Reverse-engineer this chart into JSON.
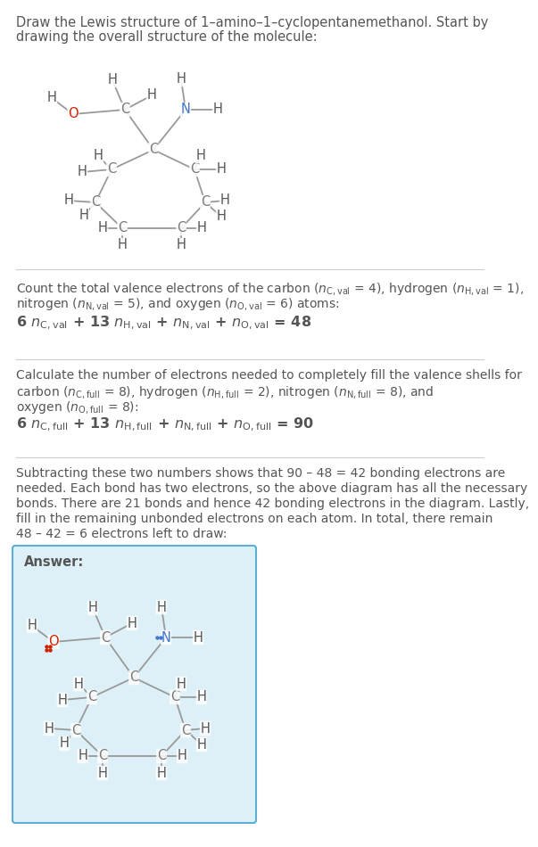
{
  "title_line1": "Draw the Lewis structure of 1–amino–1–cyclopentanemethanol. Start by",
  "title_line2": "drawing the overall structure of the molecule:",
  "s1_line1": "Count the total valence electrons of the carbon (",
  "s1_line1b": "n",
  "s1_line1c": "C,val",
  "s1_line2": "nitrogen (",
  "s1_eq": "6 n",
  "s2_line1": "Calculate the number of electrons needed to completely fill the valence shells for",
  "s2_line2": "carbon (",
  "s2_line3": "oxygen (",
  "s2_eq": "6 n",
  "s3_line1": "Subtracting these two numbers shows that 90 – 48 = 42 bonding electrons are",
  "s3_line2": "needed. Each bond has two electrons, so the above diagram has all the necessary",
  "s3_line3": "bonds. There are 21 bonds and hence 42 bonding electrons in the diagram. Lastly,",
  "s3_line4": "fill in the remaining unbonded electrons on each atom. In total, there remain",
  "s3_line5": "48 – 42 = 6 electrons left to draw:",
  "answer_label": "Answer:",
  "bg_color": "#ddf0f8",
  "border_color": "#5bafd6",
  "text_color": "#555555",
  "O_color": "#cc2200",
  "N_color": "#4477cc",
  "C_color": "#777777",
  "H_color": "#555555",
  "bond_color": "#999999",
  "sep_color": "#cccccc"
}
